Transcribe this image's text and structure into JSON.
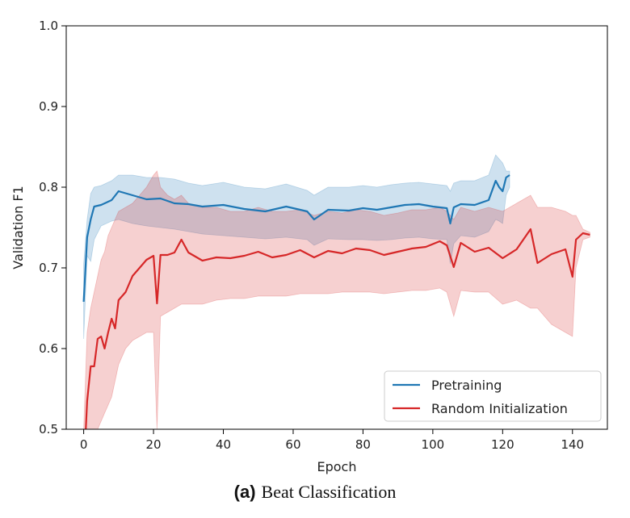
{
  "caption": {
    "panel": "(a)",
    "text": "Beat Classification"
  },
  "chart_data": {
    "type": "line",
    "xlabel": "Epoch",
    "ylabel": "Validation F1",
    "xlim": [
      -5,
      150
    ],
    "ylim": [
      0.5,
      1.0
    ],
    "xticks": [
      0,
      20,
      40,
      60,
      80,
      100,
      120,
      140
    ],
    "yticks": [
      0.5,
      0.6,
      0.7,
      0.8,
      0.9,
      1.0
    ],
    "grid": false,
    "legend_position": "lower-right",
    "series": [
      {
        "name": "Pretraining",
        "color": "#1f77b4",
        "band_color": "#1f77b4",
        "x": [
          0,
          1,
          2,
          3,
          5,
          8,
          10,
          14,
          18,
          22,
          26,
          30,
          34,
          40,
          46,
          52,
          58,
          64,
          66,
          70,
          76,
          80,
          84,
          88,
          92,
          96,
          100,
          104,
          105,
          106,
          108,
          112,
          116,
          118,
          119,
          120,
          121,
          122
        ],
        "y": [
          0.658,
          0.738,
          0.76,
          0.776,
          0.778,
          0.784,
          0.795,
          0.79,
          0.785,
          0.786,
          0.78,
          0.779,
          0.776,
          0.778,
          0.773,
          0.77,
          0.776,
          0.77,
          0.76,
          0.772,
          0.771,
          0.774,
          0.772,
          0.775,
          0.778,
          0.779,
          0.776,
          0.774,
          0.755,
          0.775,
          0.779,
          0.778,
          0.784,
          0.808,
          0.8,
          0.795,
          0.812,
          0.815
        ],
        "lower": [
          0.612,
          0.715,
          0.708,
          0.735,
          0.752,
          0.758,
          0.76,
          0.755,
          0.752,
          0.75,
          0.748,
          0.745,
          0.742,
          0.74,
          0.738,
          0.736,
          0.738,
          0.735,
          0.728,
          0.736,
          0.735,
          0.735,
          0.734,
          0.735,
          0.737,
          0.738,
          0.736,
          0.735,
          0.705,
          0.73,
          0.74,
          0.738,
          0.745,
          0.76,
          0.758,
          0.755,
          0.79,
          0.8
        ],
        "upper": [
          0.705,
          0.76,
          0.792,
          0.8,
          0.802,
          0.808,
          0.815,
          0.815,
          0.812,
          0.812,
          0.81,
          0.805,
          0.802,
          0.806,
          0.8,
          0.798,
          0.804,
          0.796,
          0.79,
          0.8,
          0.8,
          0.802,
          0.8,
          0.803,
          0.805,
          0.806,
          0.804,
          0.802,
          0.795,
          0.805,
          0.808,
          0.808,
          0.815,
          0.84,
          0.835,
          0.83,
          0.82,
          0.82
        ]
      },
      {
        "name": "Random Initialization",
        "color": "#d62728",
        "band_color": "#d62728",
        "x": [
          0,
          1,
          2,
          3,
          4,
          5,
          6,
          7,
          8,
          9,
          10,
          12,
          14,
          16,
          18,
          20,
          21,
          22,
          24,
          26,
          28,
          30,
          34,
          38,
          42,
          46,
          50,
          54,
          58,
          62,
          66,
          70,
          74,
          78,
          82,
          86,
          90,
          94,
          98,
          102,
          104,
          106,
          108,
          112,
          116,
          120,
          124,
          128,
          130,
          134,
          138,
          140,
          141,
          143,
          145
        ],
        "y": [
          0.445,
          0.535,
          0.578,
          0.578,
          0.612,
          0.615,
          0.6,
          0.62,
          0.637,
          0.625,
          0.66,
          0.67,
          0.69,
          0.7,
          0.71,
          0.715,
          0.656,
          0.716,
          0.716,
          0.719,
          0.735,
          0.719,
          0.709,
          0.713,
          0.712,
          0.715,
          0.72,
          0.713,
          0.716,
          0.722,
          0.713,
          0.721,
          0.718,
          0.724,
          0.722,
          0.716,
          0.72,
          0.724,
          0.726,
          0.733,
          0.728,
          0.701,
          0.731,
          0.72,
          0.725,
          0.712,
          0.723,
          0.748,
          0.706,
          0.717,
          0.723,
          0.689,
          0.735,
          0.743,
          0.741
        ],
        "lower": [
          0.4,
          0.43,
          0.47,
          0.48,
          0.5,
          0.51,
          0.52,
          0.53,
          0.54,
          0.56,
          0.58,
          0.6,
          0.61,
          0.615,
          0.62,
          0.62,
          0.5,
          0.64,
          0.645,
          0.65,
          0.655,
          0.655,
          0.655,
          0.66,
          0.662,
          0.662,
          0.665,
          0.665,
          0.665,
          0.668,
          0.668,
          0.668,
          0.67,
          0.67,
          0.67,
          0.668,
          0.67,
          0.672,
          0.672,
          0.675,
          0.67,
          0.64,
          0.672,
          0.67,
          0.67,
          0.655,
          0.66,
          0.65,
          0.65,
          0.63,
          0.62,
          0.615,
          0.7,
          0.735,
          0.738
        ],
        "upper": [
          0.5,
          0.62,
          0.65,
          0.67,
          0.69,
          0.71,
          0.72,
          0.74,
          0.75,
          0.76,
          0.77,
          0.775,
          0.78,
          0.79,
          0.8,
          0.815,
          0.82,
          0.8,
          0.79,
          0.785,
          0.79,
          0.78,
          0.775,
          0.775,
          0.77,
          0.77,
          0.775,
          0.77,
          0.77,
          0.772,
          0.765,
          0.77,
          0.768,
          0.772,
          0.77,
          0.765,
          0.768,
          0.772,
          0.772,
          0.775,
          0.77,
          0.76,
          0.775,
          0.77,
          0.775,
          0.77,
          0.78,
          0.79,
          0.775,
          0.775,
          0.77,
          0.765,
          0.765,
          0.748,
          0.744
        ]
      }
    ]
  }
}
